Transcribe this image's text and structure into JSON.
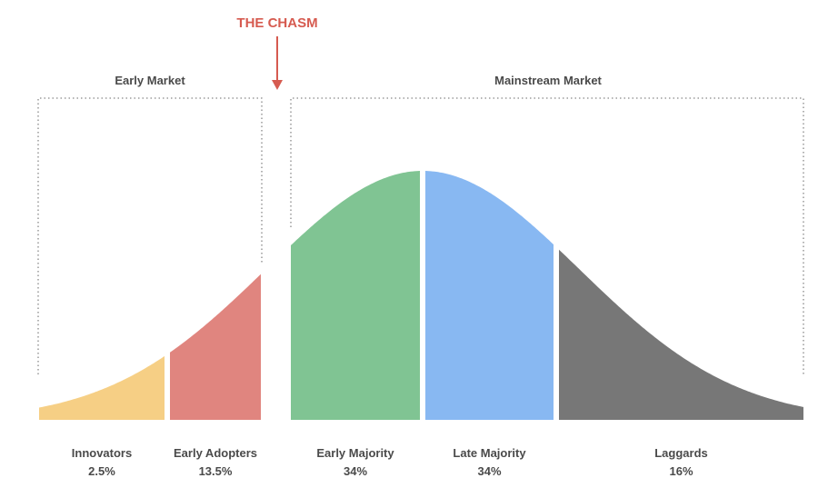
{
  "chasm_label": "THE CHASM",
  "early_market": {
    "title": "Early Market"
  },
  "mainstream_market": {
    "title": "Mainstream Market"
  },
  "segments": [
    {
      "name": "Innovators",
      "share": "2.5%"
    },
    {
      "name": "Early Adopters",
      "share": "13.5%"
    },
    {
      "name": "Early Majority",
      "share": "34%"
    },
    {
      "name": "Late Majority",
      "share": "34%"
    },
    {
      "name": "Laggards",
      "share": "16%"
    }
  ]
}
